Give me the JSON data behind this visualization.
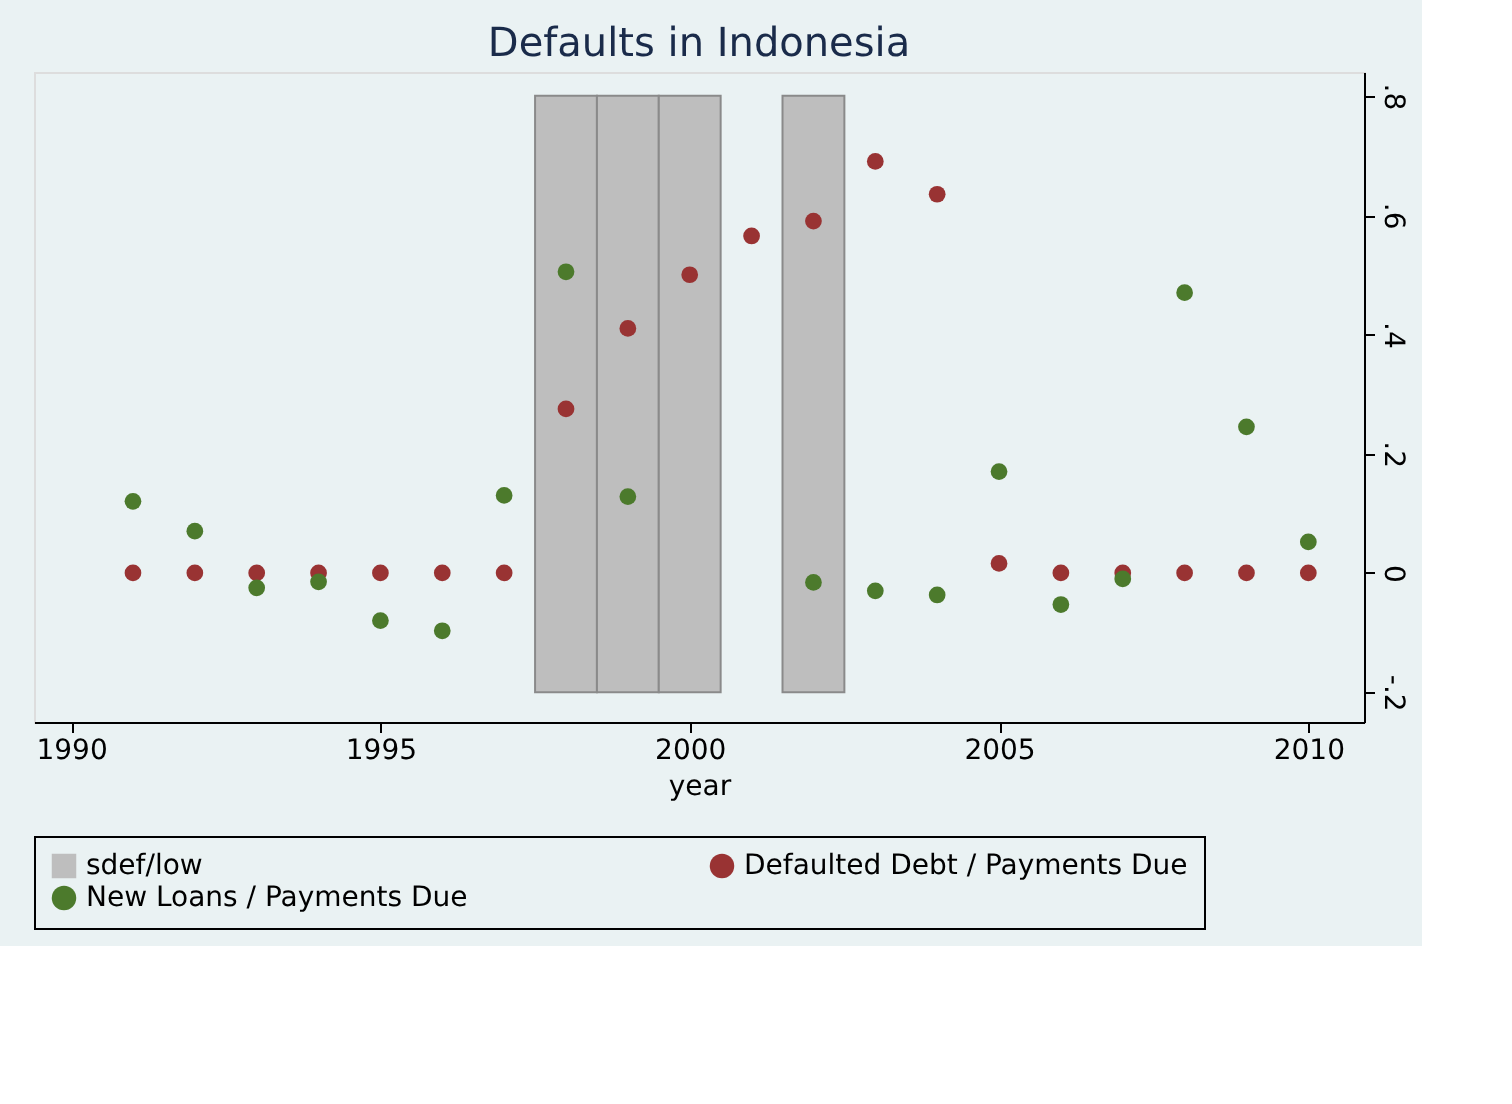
{
  "chart_data": {
    "type": "scatter",
    "title": "Defaults in Indonesia",
    "xlabel": "year",
    "xlim": [
      1989.4,
      2010.9
    ],
    "xticks": [
      1990,
      1995,
      2000,
      2005,
      2010
    ],
    "ylim": [
      -0.25,
      0.84
    ],
    "yticks": [
      {
        "value": -0.2,
        "label": "-.2"
      },
      {
        "value": 0,
        "label": "0"
      },
      {
        "value": 0.2,
        "label": ".2"
      },
      {
        "value": 0.4,
        "label": ".4"
      },
      {
        "value": 0.6,
        "label": ".6"
      },
      {
        "value": 0.8,
        "label": ".8"
      }
    ],
    "grid": false,
    "legend": "bottom",
    "marker": "circle",
    "series": [
      {
        "name": "sdef/low",
        "type": "bar",
        "color": "#bebebe",
        "x": [
          1998,
          1999,
          2000,
          2002
        ],
        "base": [
          -0.2,
          -0.2,
          -0.2,
          -0.2
        ],
        "values": [
          1.0,
          1.0,
          1.0,
          1.0
        ]
      },
      {
        "name": "Defaulted Debt / Payments Due",
        "color": "#993333",
        "x": [
          1991,
          1992,
          1993,
          1994,
          1995,
          1996,
          1997,
          1998,
          1999,
          2000,
          2001,
          2002,
          2003,
          2004,
          2005,
          2006,
          2007,
          2008,
          2009,
          2010
        ],
        "values": [
          0,
          0,
          0,
          0,
          0,
          0,
          0,
          0.275,
          0.41,
          0.5,
          0.565,
          0.59,
          0.69,
          0.635,
          0.016,
          0,
          0,
          0,
          0,
          0
        ]
      },
      {
        "name": "New Loans / Payments Due",
        "color": "#4c7a2c",
        "x": [
          1991,
          1992,
          1993,
          1994,
          1995,
          1996,
          1997,
          1998,
          1999,
          2002,
          2003,
          2004,
          2005,
          2006,
          2007,
          2008,
          2009,
          2010
        ],
        "values": [
          0.12,
          0.07,
          -0.025,
          -0.015,
          -0.08,
          -0.097,
          0.13,
          0.505,
          0.128,
          -0.016,
          -0.03,
          -0.037,
          0.17,
          -0.053,
          -0.01,
          0.47,
          0.245,
          0.052
        ]
      }
    ]
  }
}
